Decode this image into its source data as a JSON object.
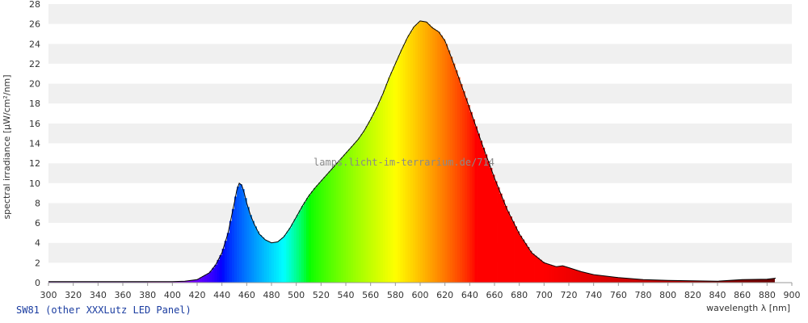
{
  "chart_data": {
    "type": "area",
    "xlabel": "wavelength λ [nm]",
    "ylabel": "spectral irradiance [µW/cm²/nm]",
    "xlim": [
      300,
      900
    ],
    "ylim": [
      0,
      28
    ],
    "x_ticks": [
      300,
      320,
      340,
      360,
      380,
      400,
      420,
      440,
      460,
      480,
      500,
      520,
      540,
      560,
      580,
      600,
      620,
      640,
      660,
      680,
      700,
      720,
      740,
      760,
      780,
      800,
      820,
      840,
      860,
      880,
      900
    ],
    "y_ticks": [
      0,
      2,
      4,
      6,
      8,
      10,
      12,
      14,
      16,
      18,
      20,
      22,
      24,
      26,
      28
    ],
    "grid": "horizontal bands",
    "fill": "spectral colors by wavelength",
    "watermark": "lamps.licht-im-terrarium.de/714",
    "caption": "SW81 (other XXXLutz LED Panel)",
    "series": [
      {
        "x": [
          300,
          400,
          410,
          420,
          430,
          435,
          440,
          445,
          448,
          450,
          452,
          454,
          456,
          458,
          460,
          463,
          466,
          470,
          475,
          480,
          485,
          490,
          495,
          500,
          505,
          510,
          515,
          520,
          525,
          530,
          535,
          540,
          545,
          550,
          555,
          560,
          565,
          570,
          575,
          580,
          585,
          590,
          595,
          600,
          605,
          610,
          615,
          620,
          625,
          630,
          640,
          650,
          660,
          670,
          680,
          690,
          700,
          710,
          715,
          720,
          730,
          740,
          760,
          780,
          800,
          820,
          840,
          860,
          880,
          887
        ],
        "values": [
          0.1,
          0.1,
          0.15,
          0.3,
          1.0,
          1.8,
          3.0,
          5.0,
          6.8,
          8.0,
          9.3,
          10.0,
          9.8,
          9.0,
          8.0,
          6.8,
          5.9,
          4.9,
          4.3,
          4.0,
          4.1,
          4.6,
          5.5,
          6.6,
          7.7,
          8.7,
          9.5,
          10.2,
          10.9,
          11.6,
          12.3,
          13.0,
          13.7,
          14.4,
          15.3,
          16.4,
          17.6,
          19.0,
          20.6,
          22.0,
          23.4,
          24.7,
          25.7,
          26.3,
          26.2,
          25.6,
          25.2,
          24.3,
          22.7,
          21.0,
          17.5,
          13.9,
          10.5,
          7.4,
          4.9,
          3.0,
          2.0,
          1.6,
          1.7,
          1.5,
          1.1,
          0.8,
          0.5,
          0.3,
          0.22,
          0.18,
          0.15,
          0.3,
          0.35,
          0.45
        ]
      }
    ]
  },
  "colors": {
    "band_light": "#ffffff",
    "band_dark": "#f0f0f0",
    "curve": "#000000"
  }
}
